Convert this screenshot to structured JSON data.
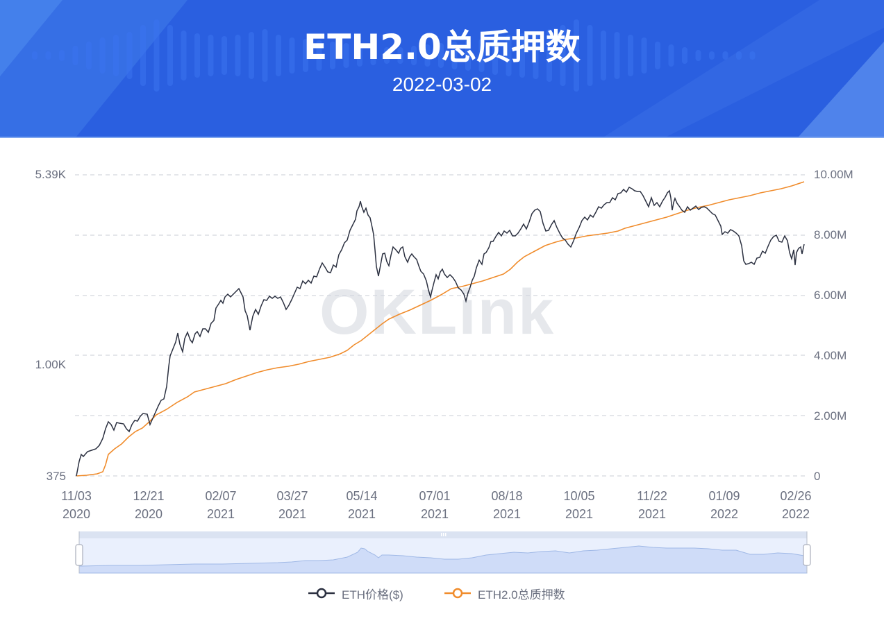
{
  "header": {
    "title": "ETH2.0总质押数",
    "date": "2022-03-02"
  },
  "watermark": "OKLink",
  "colors": {
    "banner": "#2a5fe0",
    "price_line": "#2b3040",
    "staked_line": "#f08c2c",
    "grid": "#d3d6de",
    "axis_text": "#6b7080",
    "slider_fill": "#d6e3fb",
    "slider_line": "#9fb8e6"
  },
  "axes": {
    "left": [
      "5.39K",
      "1.00K",
      "375"
    ],
    "right": [
      "10.00M",
      "8.00M",
      "6.00M",
      "4.00M",
      "2.00M",
      "0"
    ],
    "x": [
      {
        "md": "11/03",
        "y": "2020"
      },
      {
        "md": "12/21",
        "y": "2020"
      },
      {
        "md": "02/07",
        "y": "2021"
      },
      {
        "md": "03/27",
        "y": "2021"
      },
      {
        "md": "05/14",
        "y": "2021"
      },
      {
        "md": "07/01",
        "y": "2021"
      },
      {
        "md": "08/18",
        "y": "2021"
      },
      {
        "md": "10/05",
        "y": "2021"
      },
      {
        "md": "11/22",
        "y": "2021"
      },
      {
        "md": "01/09",
        "y": "2022"
      },
      {
        "md": "02/26",
        "y": "2022"
      }
    ]
  },
  "legend": [
    {
      "label": "ETH价格($)",
      "color": "#2b3040"
    },
    {
      "label": "ETH2.0总质押数",
      "color": "#f08c2c"
    }
  ],
  "chart_data": {
    "type": "line",
    "title": "ETH2.0总质押数",
    "subtitle": "2022-03-02",
    "xlabel": "",
    "ylabel_left": "ETH价格($)",
    "ylabel_right": "ETH2.0总质押数",
    "y_left_scale": "log",
    "y_left_range": [
      375,
      5390
    ],
    "y_left_ticks": [
      "375",
      "1.00K",
      "5.39K"
    ],
    "y_right_range": [
      0,
      10000000
    ],
    "y_right_ticks": [
      0,
      2000000,
      4000000,
      6000000,
      8000000,
      10000000
    ],
    "grid": true,
    "legend_position": "bottom",
    "x": [
      "2020-11-03",
      "2020-12-21",
      "2021-02-07",
      "2021-03-27",
      "2021-05-14",
      "2021-07-01",
      "2021-08-18",
      "2021-10-05",
      "2021-11-22",
      "2022-01-09",
      "2022-02-26",
      "2022-03-01"
    ],
    "series": [
      {
        "name": "ETH价格($)",
        "axis": "left",
        "values": [
          385,
          640,
          1700,
          1750,
          3700,
          2100,
          3050,
          3400,
          4300,
          3100,
          2700,
          2950
        ]
      },
      {
        "name": "ETH2.0总质押数",
        "axis": "right",
        "values": [
          0,
          1800000,
          2900000,
          3600000,
          4400000,
          6000000,
          6800000,
          7800000,
          8400000,
          9100000,
          9700000,
          9800000
        ]
      }
    ]
  }
}
